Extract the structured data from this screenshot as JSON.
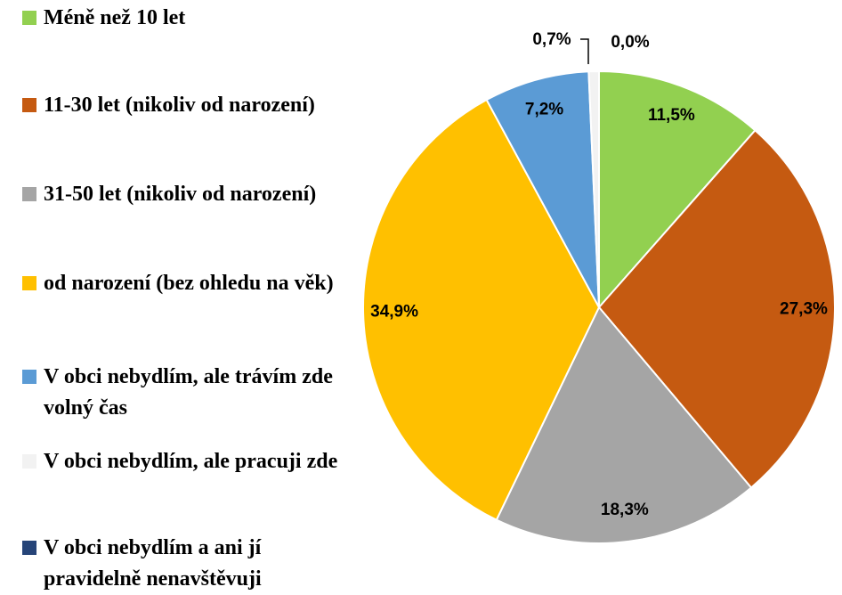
{
  "chart_data": {
    "type": "pie",
    "categories": [
      "Méně než 10 let",
      "11-30 let (nikoliv od narození)",
      "31-50 let (nikoliv od narození)",
      "od narození (bez ohledu na věk)",
      "V obci nebydlím, ale trávím zde volný čas",
      "V obci nebydlím, ale pracuji zde",
      "V obci nebydlím a ani jí pravidelně nenavštěvuji"
    ],
    "values": [
      11.5,
      27.3,
      18.3,
      34.9,
      7.2,
      0.7,
      0.0
    ],
    "value_labels": [
      "11,5%",
      "27,3%",
      "18,3%",
      "34,9%",
      "7,2%",
      "0,7%",
      "0,0%"
    ],
    "colors": [
      "#92d050",
      "#c55a11",
      "#a5a5a5",
      "#ffc000",
      "#5b9bd5",
      "#f2f2f2",
      "#264478"
    ],
    "legend": "left"
  }
}
